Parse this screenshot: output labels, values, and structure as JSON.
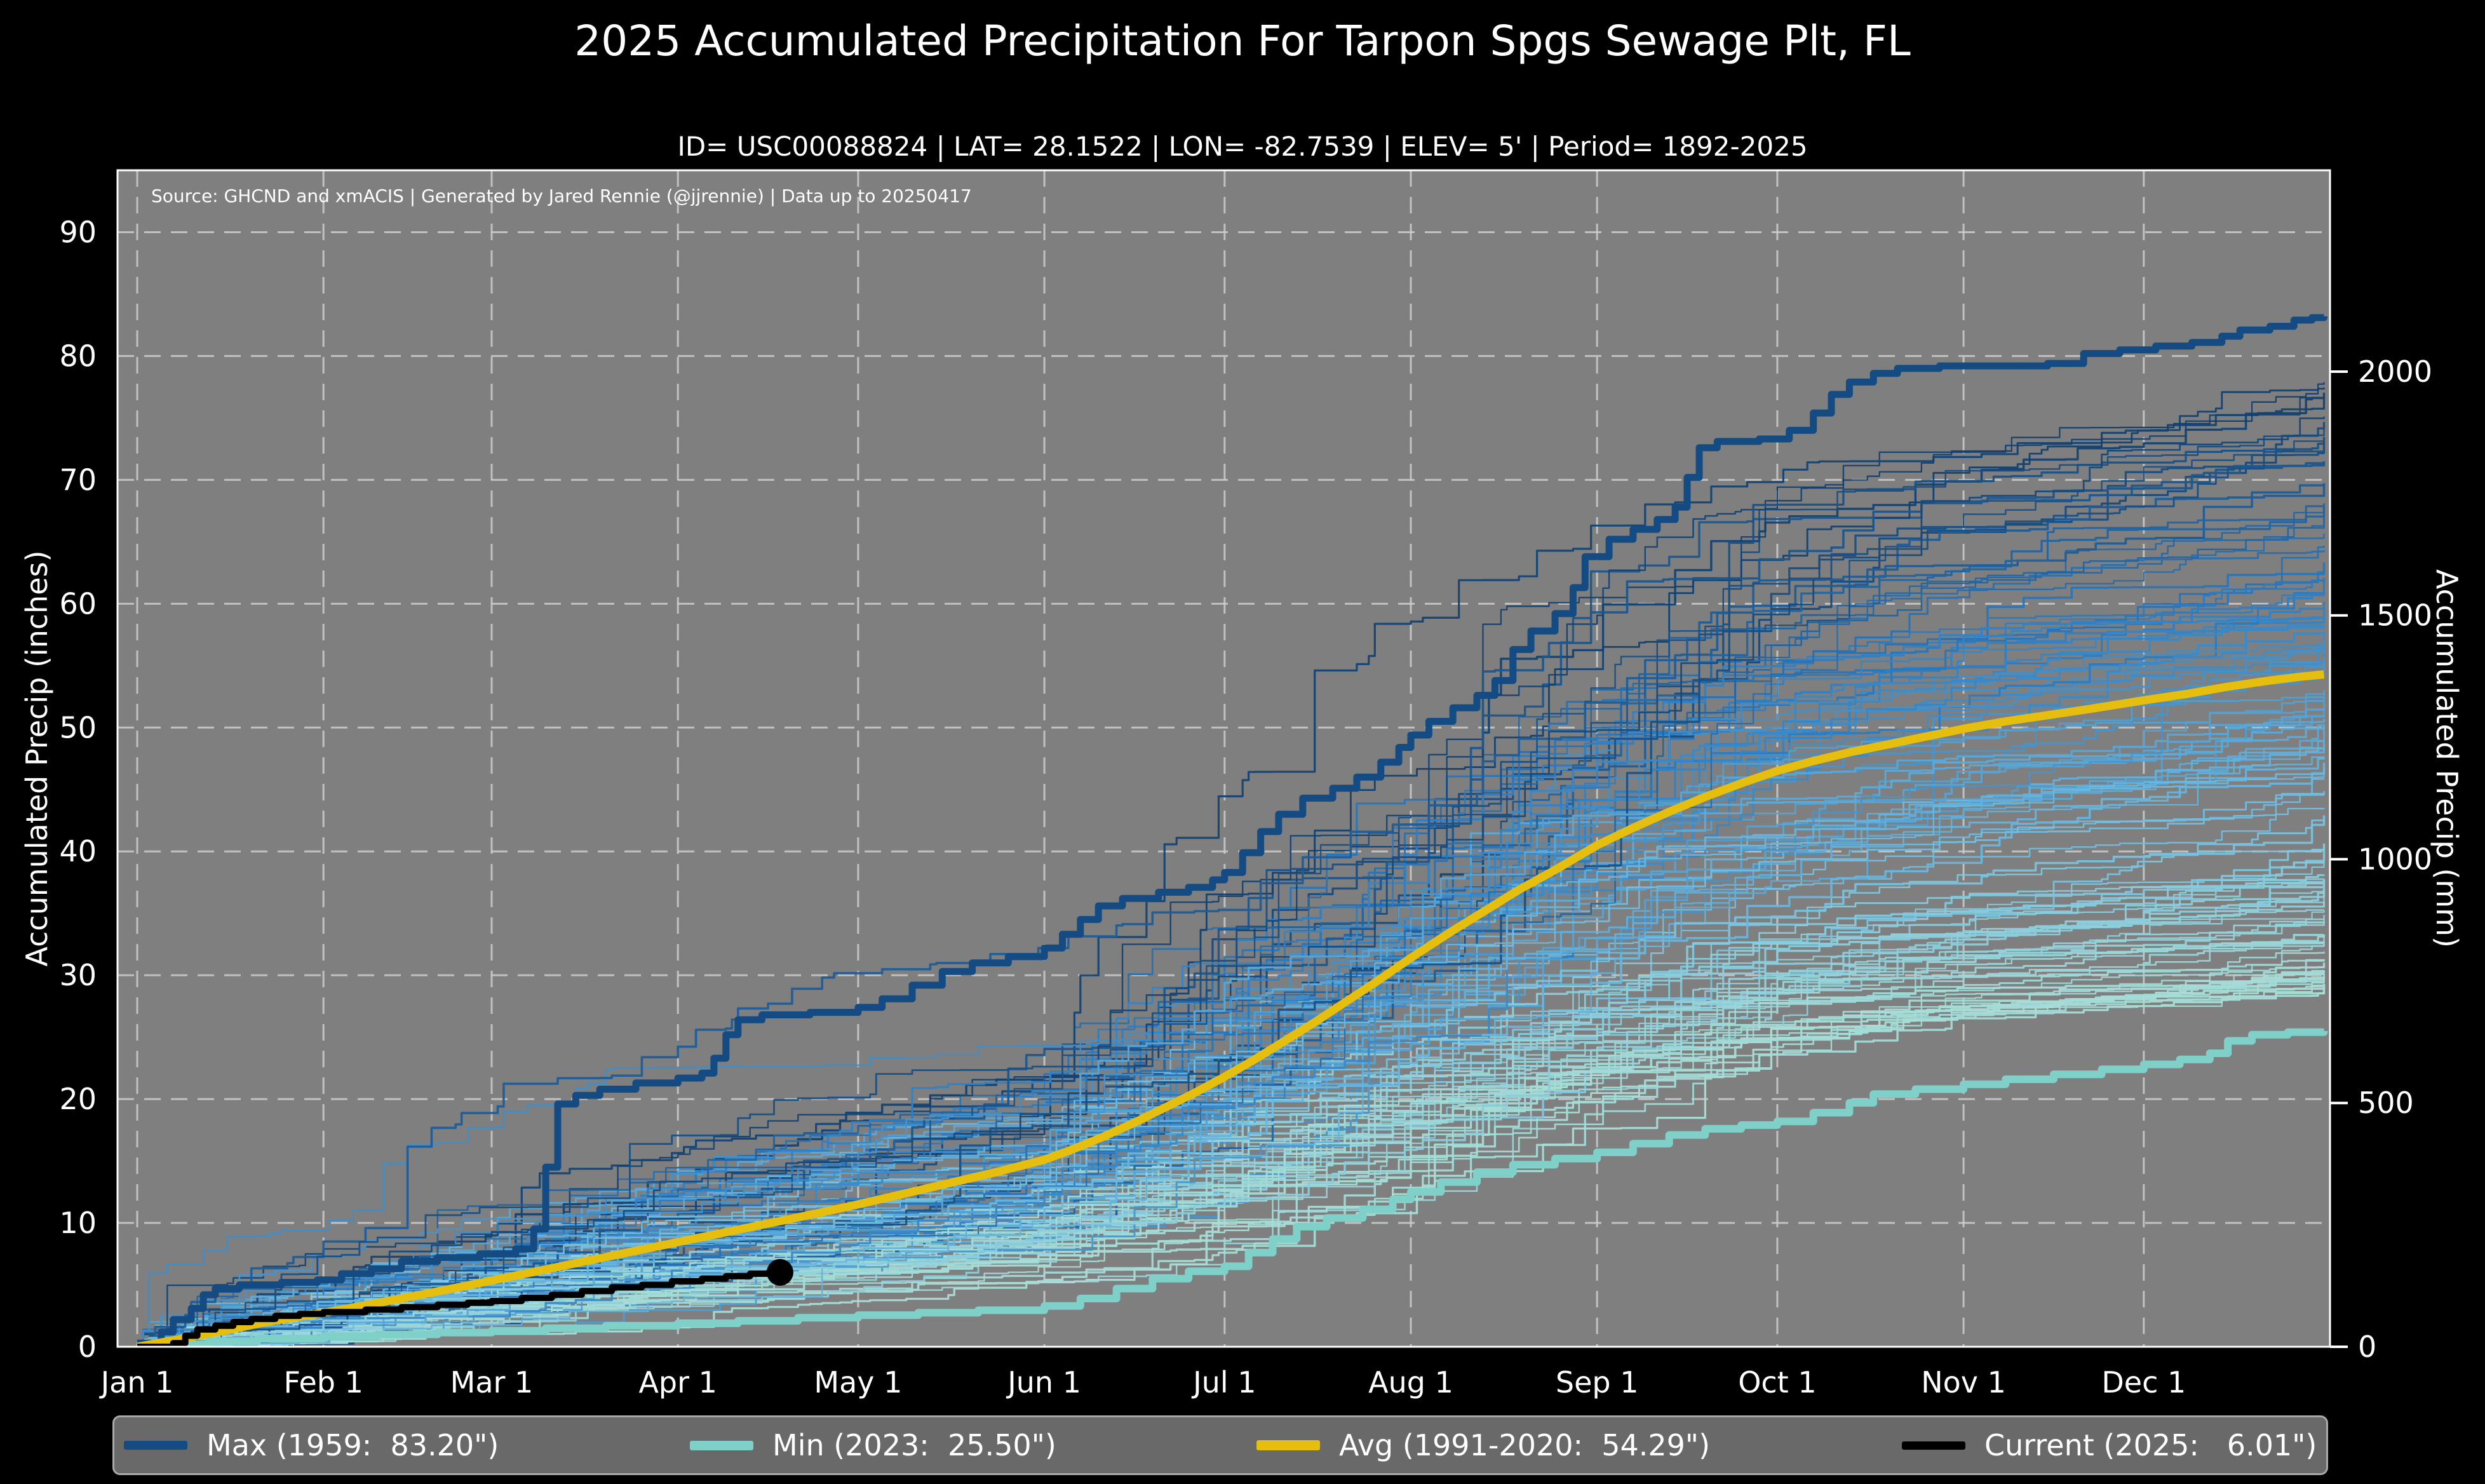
{
  "header": {
    "title": "2025 Accumulated Precipitation For Tarpon Spgs Sewage Plt, FL",
    "subtitle": "ID= USC00088824 | LAT= 28.1522 | LON= -82.7539 | ELEV= 5' | Period= 1892-2025"
  },
  "chart_data": {
    "type": "line",
    "title": "2025 Accumulated Precipitation For Tarpon Spgs Sewage Plt, FL",
    "subtitle": "ID= USC00088824 | LAT= 28.1522 | LON= -82.7539 | ELEV= 5' | Period= 1892-2025",
    "source_note": "Source: GHCND and xmACIS | Generated by Jared Rennie (@jjrennie) | Data up to 20250417",
    "plot_bg_color": "#7f7f7f",
    "page_bg_color": "#000000",
    "text_color": "#ffffff",
    "grid": {
      "color": "#cccccc",
      "dash": [
        26,
        16
      ],
      "on": true
    },
    "x_axis": {
      "tick_labels": [
        "Jan 1",
        "Feb 1",
        "Mar 1",
        "Apr 1",
        "May 1",
        "Jun 1",
        "Jul 1",
        "Aug 1",
        "Sep 1",
        "Oct 1",
        "Nov 1",
        "Dec 1"
      ],
      "tick_days": [
        0,
        31,
        59,
        90,
        120,
        151,
        181,
        212,
        243,
        273,
        304,
        334
      ],
      "domain_days": [
        0,
        365
      ]
    },
    "y_axis_left": {
      "label": "Accumulated Precip (inches)",
      "ticks": [
        0,
        10,
        20,
        30,
        40,
        50,
        60,
        70,
        80,
        90
      ],
      "range": [
        0,
        95
      ]
    },
    "y_axis_right": {
      "label": "Accumulated Precip (mm)",
      "ticks_mm": [
        0,
        500,
        1000,
        1500,
        2000
      ],
      "mm_per_inch": 25.4
    },
    "series": [
      {
        "id": "max",
        "legend": "Max (1959:  83.20\")",
        "color": "#134b82",
        "width": 11,
        "style": "step",
        "points": [
          [
            0,
            0.3
          ],
          [
            4,
            1.2
          ],
          [
            6,
            2.2
          ],
          [
            9,
            3.1
          ],
          [
            11,
            4.2
          ],
          [
            13,
            4.7
          ],
          [
            17,
            5.0
          ],
          [
            24,
            5.2
          ],
          [
            30,
            5.4
          ],
          [
            34,
            5.9
          ],
          [
            39,
            6.3
          ],
          [
            44,
            6.9
          ],
          [
            50,
            7.2
          ],
          [
            57,
            7.5
          ],
          [
            63,
            7.9
          ],
          [
            66,
            9.5
          ],
          [
            68,
            14.5
          ],
          [
            70,
            19.6
          ],
          [
            73,
            20.3
          ],
          [
            77,
            20.8
          ],
          [
            83,
            21.3
          ],
          [
            90,
            21.7
          ],
          [
            94,
            22.1
          ],
          [
            96,
            23.3
          ],
          [
            98,
            25.2
          ],
          [
            100,
            26.4
          ],
          [
            104,
            26.8
          ],
          [
            112,
            27.0
          ],
          [
            120,
            27.4
          ],
          [
            124,
            28.1
          ],
          [
            129,
            29.2
          ],
          [
            134,
            30.3
          ],
          [
            139,
            31.0
          ],
          [
            145,
            31.5
          ],
          [
            151,
            32.2
          ],
          [
            154,
            33.3
          ],
          [
            157,
            34.5
          ],
          [
            160,
            35.6
          ],
          [
            164,
            36.2
          ],
          [
            170,
            36.7
          ],
          [
            175,
            37.1
          ],
          [
            179,
            37.7
          ],
          [
            181,
            38.3
          ],
          [
            184,
            39.9
          ],
          [
            187,
            41.6
          ],
          [
            190,
            43.0
          ],
          [
            194,
            44.3
          ],
          [
            199,
            45.1
          ],
          [
            203,
            46.0
          ],
          [
            207,
            47.2
          ],
          [
            210,
            48.4
          ],
          [
            212,
            49.4
          ],
          [
            215,
            50.5
          ],
          [
            219,
            51.6
          ],
          [
            223,
            52.6
          ],
          [
            226,
            53.8
          ],
          [
            229,
            56.3
          ],
          [
            232,
            57.8
          ],
          [
            236,
            59.2
          ],
          [
            239,
            61.3
          ],
          [
            241,
            63.8
          ],
          [
            245,
            65.2
          ],
          [
            249,
            66.0
          ],
          [
            253,
            66.8
          ],
          [
            256,
            67.8
          ],
          [
            258,
            70.2
          ],
          [
            260,
            72.6
          ],
          [
            263,
            73.1
          ],
          [
            270,
            73.3
          ],
          [
            275,
            74.0
          ],
          [
            279,
            75.4
          ],
          [
            282,
            76.9
          ],
          [
            285,
            77.9
          ],
          [
            289,
            78.6
          ],
          [
            293,
            79.0
          ],
          [
            300,
            79.2
          ],
          [
            318,
            79.4
          ],
          [
            324,
            80.2
          ],
          [
            330,
            80.5
          ],
          [
            336,
            80.8
          ],
          [
            342,
            81.1
          ],
          [
            347,
            81.6
          ],
          [
            350,
            82.1
          ],
          [
            355,
            82.4
          ],
          [
            359,
            82.9
          ],
          [
            362,
            83.1
          ],
          [
            364,
            83.2
          ]
        ]
      },
      {
        "id": "min",
        "legend": "Min (2023:  25.50\")",
        "color": "#7fd0c8",
        "width": 12,
        "style": "step",
        "points": [
          [
            0,
            0
          ],
          [
            6,
            0.2
          ],
          [
            12,
            0.45
          ],
          [
            20,
            0.65
          ],
          [
            31,
            0.85
          ],
          [
            40,
            1.0
          ],
          [
            50,
            1.15
          ],
          [
            59,
            1.3
          ],
          [
            68,
            1.5
          ],
          [
            78,
            1.7
          ],
          [
            90,
            1.9
          ],
          [
            100,
            2.1
          ],
          [
            110,
            2.35
          ],
          [
            120,
            2.55
          ],
          [
            130,
            2.75
          ],
          [
            140,
            2.95
          ],
          [
            151,
            3.3
          ],
          [
            157,
            3.9
          ],
          [
            163,
            4.7
          ],
          [
            169,
            5.5
          ],
          [
            175,
            6.1
          ],
          [
            181,
            6.5
          ],
          [
            185,
            7.6
          ],
          [
            189,
            8.7
          ],
          [
            193,
            9.7
          ],
          [
            198,
            10.4
          ],
          [
            204,
            11.1
          ],
          [
            209,
            11.9
          ],
          [
            212,
            12.5
          ],
          [
            217,
            13.3
          ],
          [
            223,
            14.1
          ],
          [
            229,
            14.7
          ],
          [
            236,
            15.2
          ],
          [
            243,
            15.7
          ],
          [
            249,
            16.4
          ],
          [
            255,
            17.1
          ],
          [
            261,
            17.6
          ],
          [
            267,
            17.9
          ],
          [
            273,
            18.2
          ],
          [
            279,
            18.9
          ],
          [
            285,
            19.7
          ],
          [
            289,
            20.4
          ],
          [
            296,
            20.8
          ],
          [
            304,
            21.2
          ],
          [
            311,
            21.6
          ],
          [
            319,
            22.0
          ],
          [
            327,
            22.4
          ],
          [
            334,
            22.8
          ],
          [
            340,
            23.2
          ],
          [
            345,
            23.7
          ],
          [
            348,
            24.7
          ],
          [
            352,
            25.2
          ],
          [
            358,
            25.4
          ],
          [
            364,
            25.5
          ]
        ]
      },
      {
        "id": "avg",
        "legend": "Avg (1991-2020:  54.29\")",
        "color": "#e6bf0e",
        "width": 13,
        "style": "smooth",
        "points": [
          [
            0,
            0
          ],
          [
            8,
            0.7
          ],
          [
            15,
            1.35
          ],
          [
            22,
            2.05
          ],
          [
            31,
            2.75
          ],
          [
            38,
            3.35
          ],
          [
            45,
            4.0
          ],
          [
            52,
            4.65
          ],
          [
            59,
            5.35
          ],
          [
            66,
            6.05
          ],
          [
            74,
            6.85
          ],
          [
            82,
            7.65
          ],
          [
            90,
            8.45
          ],
          [
            97,
            9.15
          ],
          [
            105,
            9.95
          ],
          [
            113,
            10.75
          ],
          [
            120,
            11.5
          ],
          [
            128,
            12.4
          ],
          [
            135,
            13.2
          ],
          [
            143,
            14.1
          ],
          [
            151,
            15.1
          ],
          [
            156,
            16.0
          ],
          [
            161,
            17.0
          ],
          [
            166,
            18.1
          ],
          [
            171,
            19.3
          ],
          [
            176,
            20.5
          ],
          [
            181,
            21.8
          ],
          [
            186,
            23.2
          ],
          [
            191,
            24.7
          ],
          [
            196,
            26.2
          ],
          [
            201,
            27.8
          ],
          [
            206,
            29.4
          ],
          [
            212,
            31.4
          ],
          [
            218,
            33.3
          ],
          [
            224,
            35.1
          ],
          [
            230,
            36.9
          ],
          [
            236,
            38.5
          ],
          [
            243,
            40.5
          ],
          [
            249,
            41.9
          ],
          [
            255,
            43.2
          ],
          [
            261,
            44.4
          ],
          [
            267,
            45.5
          ],
          [
            273,
            46.5
          ],
          [
            279,
            47.3
          ],
          [
            285,
            48.0
          ],
          [
            291,
            48.6
          ],
          [
            297,
            49.2
          ],
          [
            304,
            49.9
          ],
          [
            311,
            50.5
          ],
          [
            318,
            51.0
          ],
          [
            325,
            51.5
          ],
          [
            334,
            52.2
          ],
          [
            341,
            52.7
          ],
          [
            348,
            53.3
          ],
          [
            355,
            53.8
          ],
          [
            360,
            54.1
          ],
          [
            364,
            54.29
          ]
        ]
      },
      {
        "id": "current",
        "legend": "Current (2025:   6.01\")",
        "color": "#000000",
        "width": 10,
        "style": "step",
        "marker_end": true,
        "marker_radius": 21,
        "points": [
          [
            0,
            0
          ],
          [
            6,
            0.3
          ],
          [
            8,
            0.9
          ],
          [
            10,
            1.4
          ],
          [
            13,
            1.7
          ],
          [
            16,
            2.0
          ],
          [
            19,
            2.25
          ],
          [
            23,
            2.5
          ],
          [
            27,
            2.65
          ],
          [
            31,
            2.8
          ],
          [
            38,
            3.0
          ],
          [
            44,
            3.2
          ],
          [
            50,
            3.4
          ],
          [
            55,
            3.55
          ],
          [
            59,
            3.7
          ],
          [
            64,
            3.95
          ],
          [
            69,
            4.2
          ],
          [
            74,
            4.5
          ],
          [
            79,
            4.8
          ],
          [
            84,
            5.0
          ],
          [
            89,
            5.3
          ],
          [
            94,
            5.5
          ],
          [
            98,
            5.7
          ],
          [
            102,
            5.9
          ],
          [
            105,
            5.97
          ],
          [
            107,
            6.01
          ]
        ]
      }
    ],
    "ensemble": {
      "description": "individual years 1892-2024, color-ramped dry (pale teal) to wet (dark navy)",
      "count": 124,
      "seed": 7,
      "total_range_inches": [
        29,
        78
      ],
      "palette": [
        "#a8ded6",
        "#6fbde2",
        "#2b7cc3",
        "#123e6c"
      ],
      "month_weights": [
        1.0,
        1.1,
        1.2,
        0.85,
        1.0,
        2.6,
        3.0,
        3.2,
        2.6,
        1.35,
        0.7,
        0.9
      ],
      "width_range": [
        2.2,
        3.6
      ],
      "opacity": 0.95
    },
    "legend": {
      "bg": "#696969",
      "border": "#a9a9a9"
    }
  }
}
